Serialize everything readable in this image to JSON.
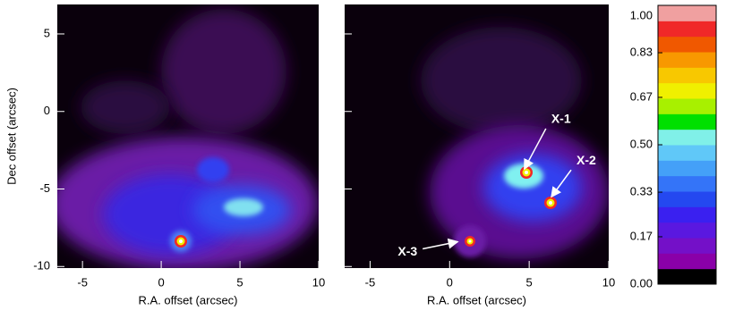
{
  "chart_data": {
    "type": "heatmap",
    "panels": [
      {
        "xlabel": "R.A. offset (arcsec)",
        "ylabel": "Dec offset (arcsec)",
        "xlim": [
          -6.6,
          10
        ],
        "ylim": [
          -10.1,
          6.9
        ],
        "xticks": [
          -5,
          0,
          5,
          10
        ],
        "yticks": [
          -10,
          -5,
          0,
          5
        ],
        "annotations": []
      },
      {
        "xlabel": "R.A. offset (arcsec)",
        "xlim": [
          -6.6,
          10
        ],
        "ylim": [
          -10.1,
          6.9
        ],
        "xticks": [
          -5,
          0,
          5,
          10
        ],
        "yticks": [
          -10,
          -5,
          0,
          5
        ],
        "annotations": [
          {
            "text": "X-1",
            "x": 4.7,
            "y": -3.7
          },
          {
            "text": "X-2",
            "x": 6.4,
            "y": -5.5
          },
          {
            "text": "X-3",
            "x": 0.5,
            "y": -8.4
          }
        ]
      }
    ],
    "colorbar": {
      "lim": [
        0,
        1
      ],
      "ticks": [
        {
          "value": 0,
          "label": "0.00"
        },
        {
          "value": 0.17,
          "label": "0.17"
        },
        {
          "value": 0.33,
          "label": "0.33"
        },
        {
          "value": 0.5,
          "label": "0.50"
        },
        {
          "value": 0.67,
          "label": "0.67"
        },
        {
          "value": 0.83,
          "label": "0.83"
        },
        {
          "value": 1,
          "label": "1.00"
        }
      ],
      "colors": [
        "#000000",
        "#8a00a8",
        "#7410c8",
        "#5a18e0",
        "#3a20f0",
        "#2448f0",
        "#3474f8",
        "#44a0f8",
        "#60c8f8",
        "#80f0e8",
        "#00e000",
        "#a8f000",
        "#f0f000",
        "#f8c800",
        "#f89800",
        "#f05800",
        "#f02828",
        "#f0a0a0"
      ]
    }
  }
}
